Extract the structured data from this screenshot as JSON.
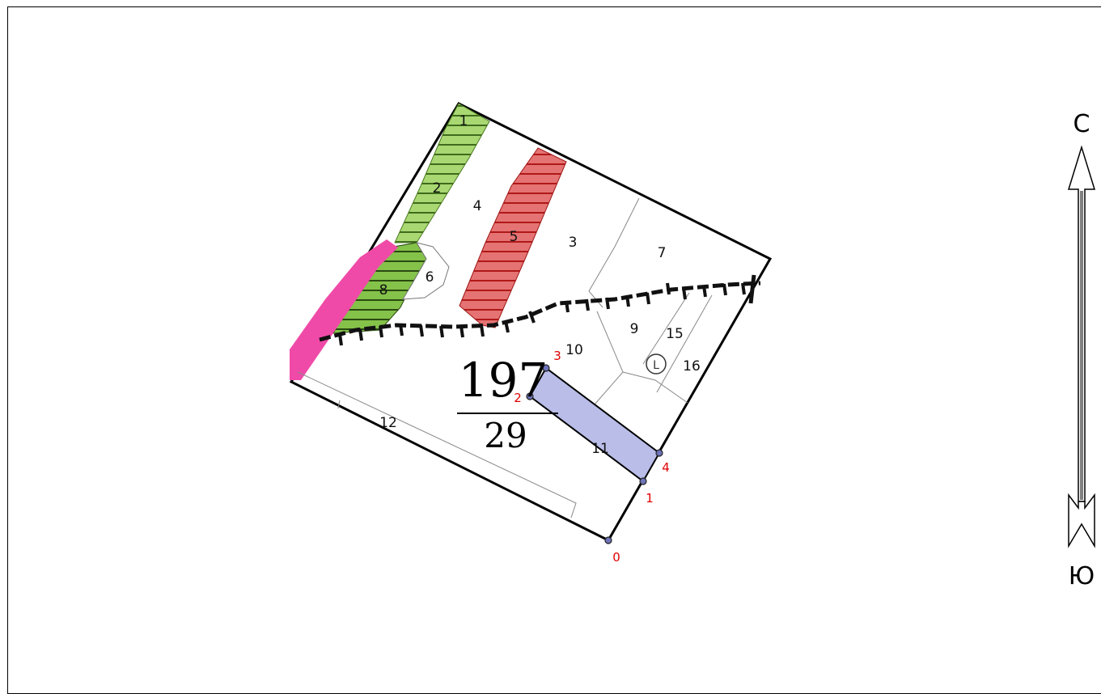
{
  "parcels": {
    "p1": "1",
    "p2": "2",
    "p3": "3",
    "p4": "4",
    "p5": "5",
    "p6": "6",
    "p7": "7",
    "p8": "8",
    "p9": "9",
    "p10": "10",
    "p11": "11",
    "p12": "12",
    "p15": "15",
    "p16": "16"
  },
  "cadastral": {
    "numerator": "197",
    "denominator": "29"
  },
  "vertices": {
    "v0": "0",
    "v1": "1",
    "v2": "2",
    "v3": "3",
    "v4": "4"
  },
  "compass": {
    "north": "С",
    "south": "Ю"
  },
  "colors": {
    "green_strip": "#9ed36a",
    "red_strip": "#e26a6a",
    "magenta_edge": "#f04aa8",
    "blue_parcel": "#b9bde8"
  }
}
